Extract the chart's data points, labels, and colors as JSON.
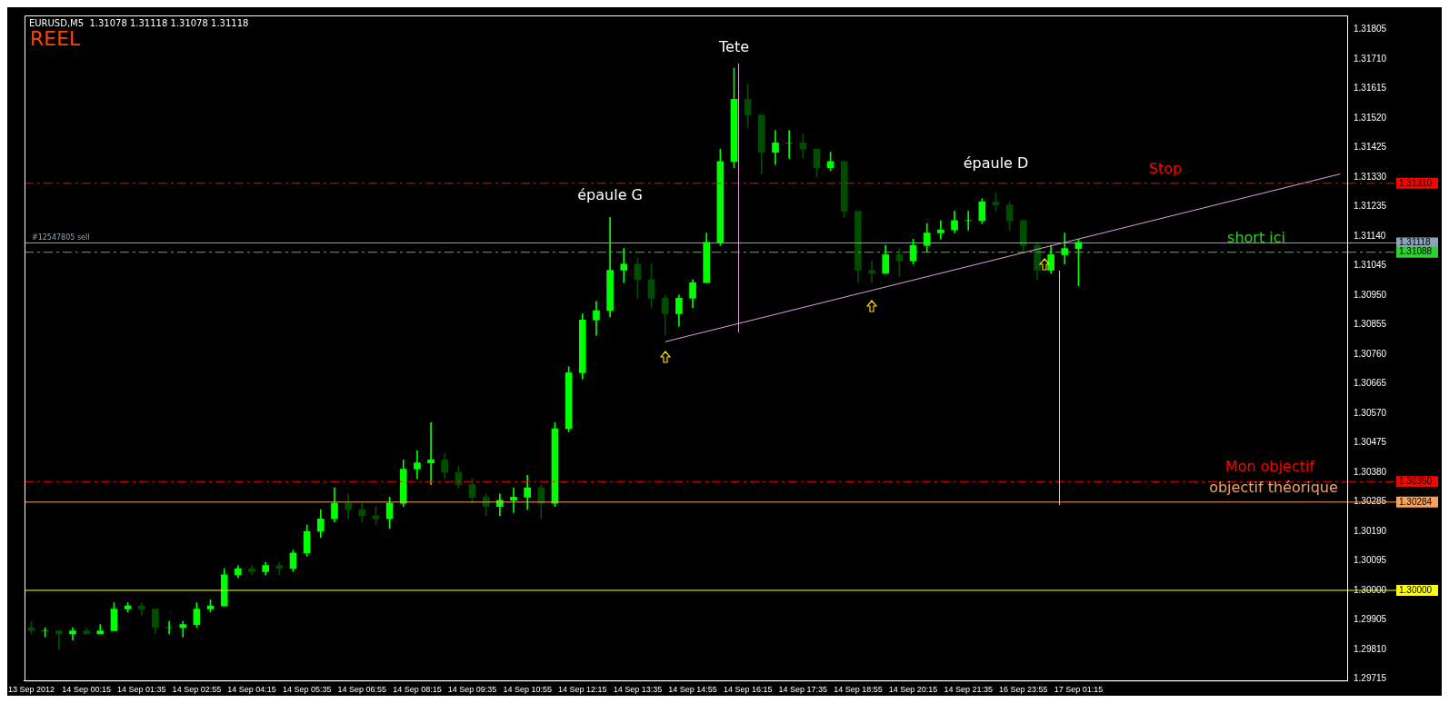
{
  "chart_data": {
    "type": "candlestick",
    "title": "EURUSD,M5  1.31078 1.31118 1.31078 1.31118",
    "subtitle": "REEL",
    "categories": [
      "13 Sep 2012",
      null,
      null,
      null,
      "14 Sep 00:15",
      null,
      null,
      null,
      "14 Sep 01:35",
      null,
      null,
      null,
      "14 Sep 02:55",
      null,
      null,
      null,
      "14 Sep 04:15",
      null,
      null,
      null,
      "14 Sep 05:35",
      null,
      null,
      null,
      "14 Sep 06:55",
      null,
      null,
      null,
      "14 Sep 08:15",
      null,
      null,
      null,
      "14 Sep 09:35",
      null,
      null,
      null,
      "14 Sep 10:55",
      null,
      null,
      null,
      "14 Sep 12:15",
      null,
      null,
      null,
      "14 Sep 13:35",
      null,
      null,
      null,
      "14 Sep 14:55",
      null,
      null,
      null,
      "14 Sep 16:15",
      null,
      null,
      null,
      "14 Sep 17:35",
      null,
      null,
      null,
      "14 Sep 18:55",
      null,
      null,
      null,
      "14 Sep 20:15",
      null,
      null,
      null,
      "14 Sep 21:35",
      null,
      null,
      null,
      "16 Sep 23:55",
      null,
      null,
      null,
      "17 Sep 01:15",
      null,
      null,
      null,
      null,
      null,
      null,
      null,
      null,
      null,
      null,
      null,
      null,
      null,
      null,
      null,
      null,
      null,
      null,
      null
    ],
    "ohlc": [
      [
        1.2988,
        1.299,
        1.2986,
        1.2987
      ],
      [
        1.2987,
        1.2988,
        1.2985,
        1.2987
      ],
      [
        1.2987,
        1.2987,
        1.2981,
        1.2986
      ],
      [
        1.2986,
        1.2988,
        1.2984,
        1.2987
      ],
      [
        1.2987,
        1.2988,
        1.2986,
        1.2986
      ],
      [
        1.2986,
        1.2989,
        1.2986,
        1.2987
      ],
      [
        1.2987,
        1.2996,
        1.2987,
        1.2994
      ],
      [
        1.2994,
        1.2996,
        1.2993,
        1.2995
      ],
      [
        1.2995,
        1.2996,
        1.2992,
        1.2994
      ],
      [
        1.2994,
        1.2994,
        1.2986,
        1.2988
      ],
      [
        1.2988,
        1.299,
        1.2986,
        1.2988
      ],
      [
        1.2988,
        1.299,
        1.2985,
        1.2989
      ],
      [
        1.2989,
        1.2996,
        1.2988,
        1.2994
      ],
      [
        1.2994,
        1.2997,
        1.2993,
        1.2995
      ],
      [
        1.2995,
        1.3007,
        1.2995,
        1.3005
      ],
      [
        1.3005,
        1.3008,
        1.3004,
        1.3007
      ],
      [
        1.3007,
        1.3008,
        1.3005,
        1.3006
      ],
      [
        1.3006,
        1.3009,
        1.3005,
        1.3008
      ],
      [
        1.3008,
        1.3009,
        1.3005,
        1.3007
      ],
      [
        1.3007,
        1.3013,
        1.3006,
        1.3012
      ],
      [
        1.3012,
        1.3021,
        1.3011,
        1.3019
      ],
      [
        1.3019,
        1.3026,
        1.3017,
        1.3023
      ],
      [
        1.3023,
        1.3033,
        1.3022,
        1.3028
      ],
      [
        1.3028,
        1.3031,
        1.3023,
        1.3026
      ],
      [
        1.3026,
        1.3028,
        1.3022,
        1.3024
      ],
      [
        1.3024,
        1.3027,
        1.3021,
        1.3023
      ],
      [
        1.3023,
        1.303,
        1.302,
        1.3028
      ],
      [
        1.3028,
        1.3042,
        1.3027,
        1.3039
      ],
      [
        1.3039,
        1.3045,
        1.3036,
        1.3041
      ],
      [
        1.3041,
        1.3054,
        1.3034,
        1.3042
      ],
      [
        1.3042,
        1.3044,
        1.3036,
        1.3038
      ],
      [
        1.3038,
        1.304,
        1.3033,
        1.3034
      ],
      [
        1.3034,
        1.3036,
        1.3028,
        1.303
      ],
      [
        1.303,
        1.3031,
        1.3024,
        1.3027
      ],
      [
        1.3027,
        1.3031,
        1.3024,
        1.3029
      ],
      [
        1.3029,
        1.3033,
        1.3025,
        1.303
      ],
      [
        1.303,
        1.3037,
        1.3026,
        1.3033
      ],
      [
        1.3033,
        1.3034,
        1.3023,
        1.3028
      ],
      [
        1.3028,
        1.3054,
        1.3027,
        1.3052
      ],
      [
        1.3052,
        1.3072,
        1.3051,
        1.307
      ],
      [
        1.307,
        1.3089,
        1.3068,
        1.3087
      ],
      [
        1.3087,
        1.3093,
        1.3082,
        1.309
      ],
      [
        1.309,
        1.312,
        1.3088,
        1.3103
      ],
      [
        1.3103,
        1.311,
        1.3099,
        1.3105
      ],
      [
        1.3105,
        1.3107,
        1.3094,
        1.31
      ],
      [
        1.31,
        1.3105,
        1.3091,
        1.3094
      ],
      [
        1.3094,
        1.3095,
        1.3082,
        1.3089
      ],
      [
        1.3089,
        1.3095,
        1.3085,
        1.3094
      ],
      [
        1.3094,
        1.31,
        1.3091,
        1.3099
      ],
      [
        1.3099,
        1.3115,
        1.3099,
        1.3112
      ],
      [
        1.3112,
        1.3142,
        1.3111,
        1.3138
      ],
      [
        1.3138,
        1.3168,
        1.3136,
        1.3158
      ],
      [
        1.3158,
        1.3163,
        1.3149,
        1.3153
      ],
      [
        1.3153,
        1.3153,
        1.3134,
        1.3141
      ],
      [
        1.3141,
        1.3148,
        1.3137,
        1.3144
      ],
      [
        1.3144,
        1.3148,
        1.3139,
        1.3144
      ],
      [
        1.3144,
        1.3147,
        1.3139,
        1.3142
      ],
      [
        1.3142,
        1.3142,
        1.3133,
        1.3136
      ],
      [
        1.3136,
        1.3141,
        1.3135,
        1.3138
      ],
      [
        1.3138,
        1.3138,
        1.312,
        1.3122
      ],
      [
        1.3122,
        1.3122,
        1.3099,
        1.3103
      ],
      [
        1.3103,
        1.3106,
        1.3099,
        1.3102
      ],
      [
        1.3102,
        1.3111,
        1.3102,
        1.3108
      ],
      [
        1.3108,
        1.311,
        1.3101,
        1.3106
      ],
      [
        1.3106,
        1.3113,
        1.3105,
        1.3111
      ],
      [
        1.3111,
        1.3118,
        1.3109,
        1.3115
      ],
      [
        1.3115,
        1.3119,
        1.3113,
        1.3116
      ],
      [
        1.3116,
        1.3122,
        1.3115,
        1.3119
      ],
      [
        1.3119,
        1.3122,
        1.3116,
        1.3119
      ],
      [
        1.3119,
        1.3126,
        1.3118,
        1.3125
      ],
      [
        1.3125,
        1.3128,
        1.3122,
        1.3124
      ],
      [
        1.3124,
        1.3125,
        1.3116,
        1.3119
      ],
      [
        1.3119,
        1.3119,
        1.3109,
        1.3111
      ],
      [
        1.3111,
        1.3112,
        1.31,
        1.3103
      ],
      [
        1.3103,
        1.3111,
        1.3102,
        1.3108
      ],
      [
        1.3108,
        1.3115,
        1.3105,
        1.311
      ],
      [
        1.311,
        1.3113,
        1.3098,
        1.3112
      ],
      null,
      null,
      null,
      null,
      null,
      null,
      null,
      null,
      null,
      null,
      null,
      null,
      null,
      null,
      null,
      null,
      null,
      null,
      null
    ],
    "colors": [
      "#004d00",
      "#00ff00",
      "#004d00",
      "#00ff00",
      "#004d00",
      "#00ff00",
      "#00ff00",
      "#00ff00",
      "#004d00",
      "#004d00",
      "#00ff00",
      "#00ff00",
      "#00ff00",
      "#00ff00",
      "#00ff00",
      "#00ff00",
      "#004d00",
      "#00ff00",
      "#004d00",
      "#00ff00",
      "#00ff00",
      "#00ff00",
      "#00ff00",
      "#004d00",
      "#004d00",
      "#004d00",
      "#00ff00",
      "#00ff00",
      "#00ff00",
      "#00ff00",
      "#004d00",
      "#004d00",
      "#004d00",
      "#004d00",
      "#00ff00",
      "#00ff00",
      "#00ff00",
      "#004d00",
      "#00ff00",
      "#00ff00",
      "#00ff00",
      "#00ff00",
      "#00ff00",
      "#00ff00",
      "#004d00",
      "#004d00",
      "#004d00",
      "#00ff00",
      "#00ff00",
      "#00ff00",
      "#00ff00",
      "#00ff00",
      "#004d00",
      "#004d00",
      "#00ff00",
      "#00ff00",
      "#004d00",
      "#004d00",
      "#00ff00",
      "#004d00",
      "#004d00",
      "#004d00",
      "#00ff00",
      "#004d00",
      "#00ff00",
      "#00ff00",
      "#00ff00",
      "#00ff00",
      "#00ff00",
      "#00ff00",
      "#004d00",
      "#004d00",
      "#004d00",
      "#004d00",
      "#00ff00",
      "#00ff00",
      "#00ff00",
      null,
      null,
      null,
      null,
      null,
      null,
      null,
      null,
      null,
      null,
      null,
      null,
      null,
      null,
      null,
      null,
      null,
      null,
      null
    ],
    "series": [
      {
        "type": "line",
        "color": "#dda0dd",
        "values": [
          null,
          null,
          null,
          null,
          null,
          null,
          null,
          null,
          null,
          null,
          null,
          null,
          null,
          null,
          null,
          null,
          null,
          null,
          null,
          null,
          null,
          null,
          null,
          null,
          null,
          null,
          null,
          null,
          null,
          null,
          null,
          null,
          null,
          null,
          null,
          null,
          null,
          null,
          null,
          null,
          null,
          null,
          null,
          null,
          null,
          null,
          1.308,
          null,
          null,
          null,
          null,
          null,
          null,
          null,
          null,
          null,
          null,
          null,
          null,
          null,
          null,
          null,
          null,
          null,
          null,
          null,
          null,
          null,
          null,
          null,
          null,
          null,
          null,
          null,
          null,
          null,
          null,
          null,
          null,
          null,
          null,
          null,
          null,
          null,
          null,
          null,
          null,
          null,
          null,
          null,
          null,
          null,
          null,
          null,
          null,
          1.3134
        ]
      }
    ],
    "ylim": [
      1.2971,
      1.3185
    ],
    "yticks": [
      1.31805,
      {
        "value": 1.3171,
        "label": "1.31710"
      },
      1.31615,
      {
        "value": 1.3152,
        "label": "1.31520"
      },
      1.31425,
      {
        "value": 1.3133,
        "label": "1.31330"
      },
      1.31235,
      {
        "value": 1.3114,
        "label": "1.31140"
      },
      1.31045,
      {
        "value": 1.3095,
        "label": "1.30950"
      },
      1.30855,
      {
        "value": 1.3076,
        "label": "1.30760"
      },
      1.30665,
      {
        "value": 1.3057,
        "label": "1.30570"
      },
      1.30475,
      {
        "value": 1.3038,
        "label": "1.30380"
      },
      1.30285,
      {
        "value": 1.3019,
        "label": "1.30190"
      },
      1.30095,
      {
        "value": 1.3,
        "label": "1.30000"
      },
      1.29905,
      {
        "value": 1.2981,
        "label": "1.29810"
      },
      1.29715
    ],
    "ref_lines": [
      {
        "axis": "y",
        "value": 1.3131,
        "label": "1.31310",
        "color": "#ff0000",
        "line_style": "dashed"
      },
      {
        "axis": "y",
        "value": 1.31118,
        "label": "1.31118",
        "color": "#8fa3b8",
        "line_style": "solid"
      },
      {
        "axis": "y",
        "value": 1.31088,
        "label": "1.31088",
        "color": "#32cd32",
        "line_style": "dashed"
      },
      {
        "axis": "y",
        "value": 1.3035,
        "label": "1.30350",
        "color": "#ff0000",
        "line_style": "dashed"
      },
      {
        "axis": "y",
        "value": 1.30284,
        "label": "1.30284",
        "color": "#f4a460",
        "line_style": "solid"
      },
      {
        "axis": "y",
        "value": 1.3,
        "label": "1.30000",
        "color": "#ffff00",
        "line_style": "solid"
      }
    ],
    "annotations": [
      "Tete",
      "épaule G",
      "épaule D",
      {
        "text": "Stop",
        "y": 1.3131
      },
      {
        "text": "#12547805 sell",
        "y": 1.31118
      },
      {
        "text": "short ici",
        "y": 1.31088
      },
      {
        "text": "Mon objectif",
        "y": 1.3035
      },
      {
        "text": "objectif théorique",
        "y": 1.30284
      }
    ],
    "grid": false,
    "legend": false
  }
}
